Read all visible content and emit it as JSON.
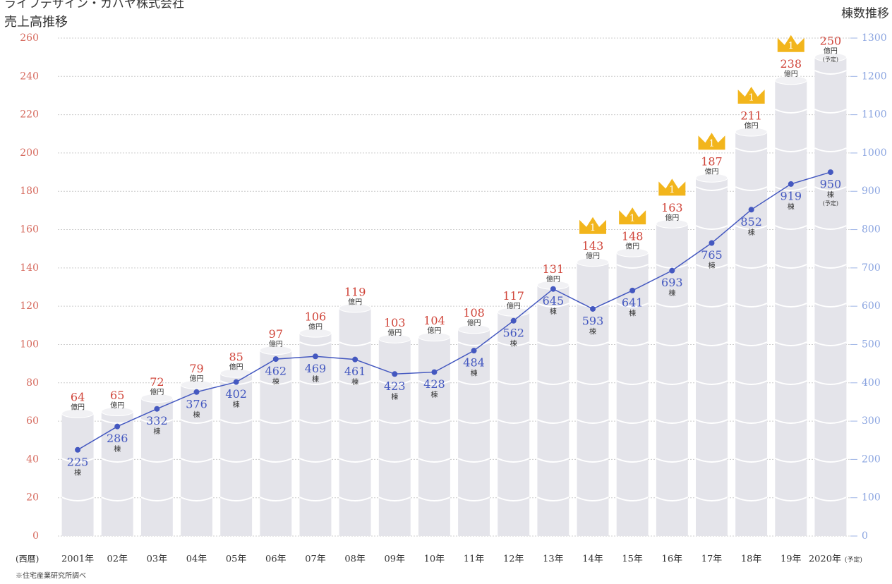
{
  "chart_data": {
    "type": "bar_line",
    "title": "ライフデザイン・カバヤ株式会社",
    "y_axis_title": "売上高推移",
    "y2_axis_title": "棟数推移",
    "x_axis_prefix": "(西暦)",
    "footnote": "※住宅産業研究所調べ",
    "forecast_note": "(予定)",
    "categories": [
      "2001年",
      "02年",
      "03年",
      "04年",
      "05年",
      "06年",
      "07年",
      "08年",
      "09年",
      "10年",
      "11年",
      "12年",
      "13年",
      "14年",
      "15年",
      "16年",
      "17年",
      "18年",
      "19年",
      "2020年"
    ],
    "series": [
      {
        "name": "売上高",
        "unit": "億円",
        "color": "#d0453a",
        "bar_color": "#e4e4ea",
        "values": [
          64,
          65,
          72,
          79,
          85,
          97,
          106,
          119,
          103,
          104,
          108,
          117,
          131,
          143,
          148,
          163,
          187,
          211,
          238,
          250
        ]
      },
      {
        "name": "棟数",
        "unit": "棟",
        "color": "#4458c0",
        "axis": "y2",
        "values": [
          225,
          286,
          332,
          376,
          402,
          462,
          469,
          461,
          423,
          428,
          484,
          562,
          645,
          593,
          641,
          693,
          765,
          852,
          919,
          950
        ]
      },
      {
        "name": "rank",
        "color": "#f2b51c",
        "values": [
          null,
          null,
          null,
          null,
          null,
          null,
          null,
          null,
          null,
          null,
          null,
          null,
          null,
          1,
          1,
          1,
          1,
          1,
          1,
          null
        ]
      }
    ],
    "ylim": [
      0,
      260
    ],
    "yticks": [
      0,
      20,
      40,
      60,
      80,
      100,
      120,
      140,
      160,
      180,
      200,
      220,
      240,
      260
    ],
    "y2lim": [
      0,
      1300
    ],
    "y2ticks": [
      0,
      100,
      200,
      300,
      400,
      500,
      600,
      700,
      800,
      900,
      1000,
      1100,
      1200,
      1300
    ],
    "grid": true
  }
}
